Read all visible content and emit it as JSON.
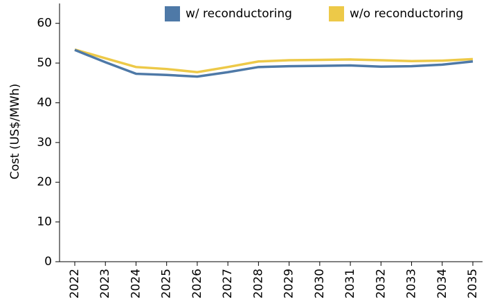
{
  "chart_data": {
    "type": "line",
    "y_label": "Cost (US$/MWh)",
    "categories": [
      "2022",
      "2023",
      "2024",
      "2025",
      "2026",
      "2027",
      "2028",
      "2029",
      "2030",
      "2031",
      "2032",
      "2033",
      "2034",
      "2035"
    ],
    "series": [
      {
        "name": "w/ reconductoring",
        "color": "#4e79a7",
        "values": [
          53.3,
          50.2,
          47.3,
          47.0,
          46.6,
          47.7,
          49.0,
          49.2,
          49.3,
          49.4,
          49.1,
          49.2,
          49.6,
          50.4
        ]
      },
      {
        "name": "w/o reconductoring",
        "color": "#edc948",
        "values": [
          53.4,
          51.2,
          49.0,
          48.5,
          47.7,
          49.0,
          50.4,
          50.7,
          50.8,
          50.9,
          50.7,
          50.5,
          50.6,
          51.0
        ]
      }
    ],
    "ylim": [
      0,
      65
    ],
    "yticks": [
      0,
      10,
      20,
      30,
      40,
      50,
      60
    ],
    "grid": false,
    "legend": "top-right"
  }
}
